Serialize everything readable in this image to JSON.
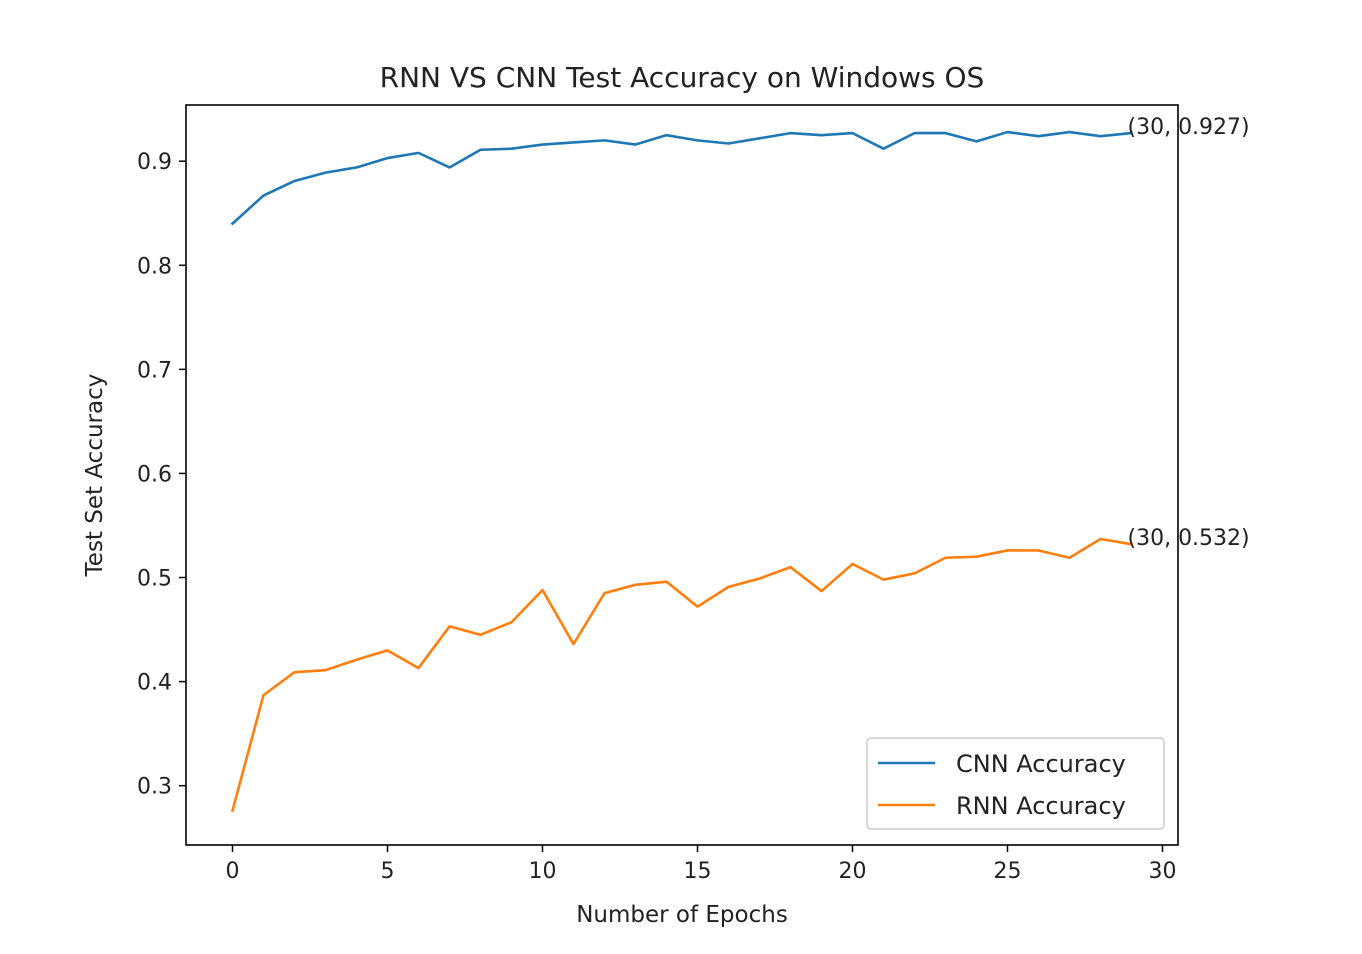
{
  "chart_data": {
    "type": "line",
    "title": "RNN VS CNN Test Accuracy on Windows OS",
    "xlabel": "Number of Epochs",
    "ylabel": "Test Set Accuracy",
    "xlim": [
      -1.5,
      30.5
    ],
    "ylim": [
      0.243,
      0.954
    ],
    "xticks": [
      0,
      5,
      10,
      15,
      20,
      25,
      30
    ],
    "yticks": [
      0.3,
      0.4,
      0.5,
      0.6,
      0.7,
      0.8,
      0.9
    ],
    "grid": false,
    "legend_position": "lower-right",
    "x": [
      0,
      1,
      2,
      3,
      4,
      5,
      6,
      7,
      8,
      9,
      10,
      11,
      12,
      13,
      14,
      15,
      16,
      17,
      18,
      19,
      20,
      21,
      22,
      23,
      24,
      25,
      26,
      27,
      28,
      29
    ],
    "series": [
      {
        "name": "CNN Accuracy",
        "color": "#1f77b4",
        "values": [
          0.84,
          0.867,
          0.881,
          0.889,
          0.894,
          0.903,
          0.908,
          0.894,
          0.911,
          0.912,
          0.916,
          0.918,
          0.92,
          0.916,
          0.925,
          0.92,
          0.917,
          0.922,
          0.927,
          0.925,
          0.927,
          0.912,
          0.927,
          0.927,
          0.919,
          0.928,
          0.924,
          0.928,
          0.924,
          0.927
        ]
      },
      {
        "name": "RNN Accuracy",
        "color": "#ff7f0e",
        "values": [
          0.276,
          0.387,
          0.409,
          0.411,
          0.421,
          0.43,
          0.413,
          0.453,
          0.445,
          0.457,
          0.488,
          0.436,
          0.485,
          0.493,
          0.496,
          0.472,
          0.491,
          0.499,
          0.51,
          0.487,
          0.513,
          0.498,
          0.504,
          0.519,
          0.52,
          0.526,
          0.526,
          0.519,
          0.537,
          0.532
        ]
      }
    ],
    "annotations": [
      {
        "text": "(30, 0.927)",
        "x": 29,
        "y": 0.927
      },
      {
        "text": "(30, 0.532)",
        "x": 29,
        "y": 0.532
      }
    ]
  }
}
